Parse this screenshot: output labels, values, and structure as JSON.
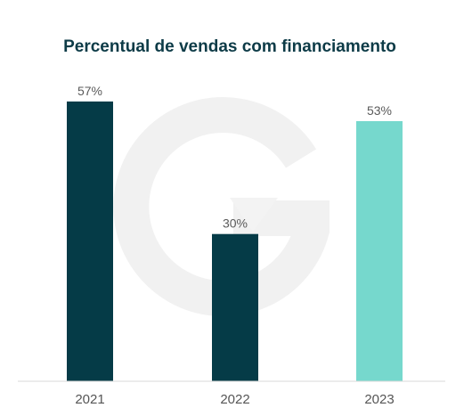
{
  "chart_data": {
    "type": "bar",
    "title": "Percentual de vendas com financiamento",
    "categories": [
      "2021",
      "2022",
      "2023"
    ],
    "values": [
      57,
      30,
      53
    ],
    "value_labels": [
      "57%",
      "30%",
      "53%"
    ],
    "ylim": [
      0,
      60
    ],
    "grid": false,
    "legend": "none",
    "colors": [
      "#053b47",
      "#053b47",
      "#76d8cd"
    ],
    "axis_color": "#d9d9d9",
    "watermark_color": "#f0f0f0"
  }
}
